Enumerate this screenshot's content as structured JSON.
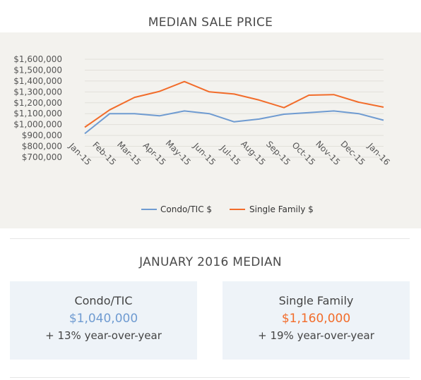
{
  "header": {
    "title": "MEDIAN SALE PRICE"
  },
  "chart_data": {
    "type": "line",
    "title": "MEDIAN SALE PRICE",
    "categories": [
      "Jan-15",
      "Feb-15",
      "Mar-15",
      "Apr-15",
      "May-15",
      "Jun-15",
      "Jul-15",
      "Aug-15",
      "Sep-15",
      "Oct-15",
      "Nov-15",
      "Dec-15",
      "Jan-16"
    ],
    "series": [
      {
        "name": "Condo/TIC $",
        "color": "#6f9bd1",
        "values": [
          917000,
          1100000,
          1100000,
          1080000,
          1125000,
          1100000,
          1025000,
          1050000,
          1095000,
          1110000,
          1125000,
          1100000,
          1040000
        ]
      },
      {
        "name": "Single Family $",
        "color": "#f26c2a",
        "values": [
          975000,
          1135000,
          1250000,
          1305000,
          1395000,
          1300000,
          1280000,
          1225000,
          1155000,
          1270000,
          1275000,
          1205000,
          1160000
        ]
      }
    ],
    "ylim": [
      700000,
      1600000
    ],
    "yticks": [
      "$700,000",
      "$800,000",
      "$900,000",
      "$1,000,000",
      "$1,100,000",
      "$1,200,000",
      "$1,300,000",
      "$1,400,000",
      "$1,500,000",
      "$1,600,000"
    ],
    "legend": "bottom",
    "grid": true
  },
  "summary": {
    "title": "JANUARY 2016 MEDIAN",
    "condo": {
      "label": "Condo/TIC",
      "value": "$1,040,000",
      "change": "+ 13% year-over-year",
      "color": "#6f9bd1"
    },
    "single_family": {
      "label": "Single Family",
      "value": "$1,160,000",
      "change": "+ 19% year-over-year",
      "color": "#f26c2a"
    }
  }
}
